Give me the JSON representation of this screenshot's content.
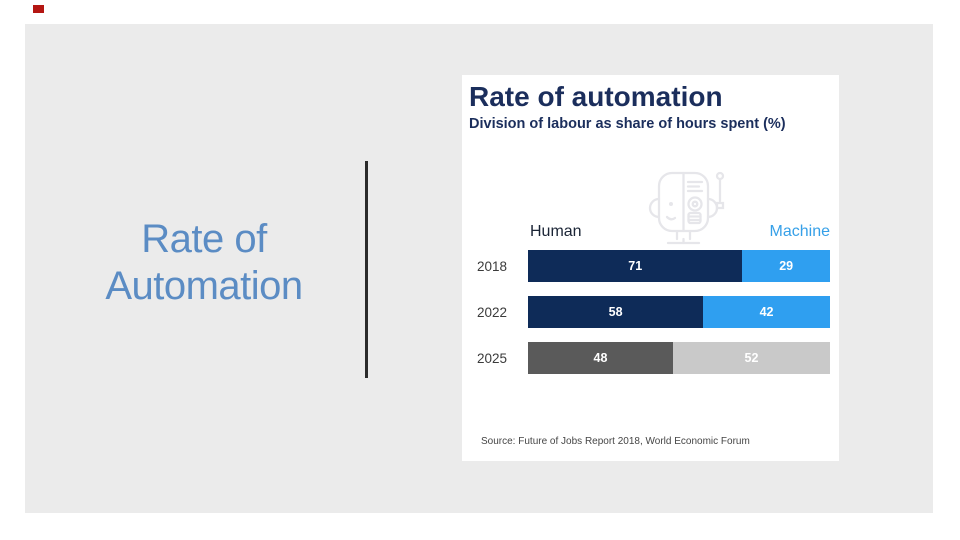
{
  "slide": {
    "accent_color": "#b41612",
    "title_lines": [
      "Rate of",
      "Automation"
    ],
    "title_color": "#5b8cc4"
  },
  "chart": {
    "title": "Rate of automation",
    "subtitle": "Division of labour as share of hours spent (%)",
    "legend": {
      "human": "Human",
      "machine": "Machine"
    },
    "source": "Source: Future of Jobs Report 2018, World Economic Forum",
    "colors": {
      "title_navy": "#1b2e5c",
      "human_bar_navy": "#0e2b58",
      "machine_bar_blue": "#2f9ff0",
      "human_bar_gray_2025": "#5a5a5a",
      "machine_bar_gray_2025": "#c9c9c9",
      "human_label": "#1a2435",
      "machine_label": "#36a0e8",
      "value_label": "#ffffff"
    }
  },
  "chart_data": {
    "type": "bar",
    "orientation": "horizontal",
    "stacked": true,
    "title": "Rate of automation",
    "subtitle": "Division of labour as share of hours spent (%)",
    "categories": [
      "2018",
      "2022",
      "2025"
    ],
    "series": [
      {
        "name": "Human",
        "values": [
          71,
          58,
          48
        ]
      },
      {
        "name": "Machine",
        "values": [
          29,
          42,
          52
        ]
      }
    ],
    "value_unit": "% of hours spent",
    "xlim": [
      0,
      100
    ],
    "legend_position": "top",
    "grid": false,
    "row_colors": [
      [
        "#0e2b58",
        "#2f9ff0"
      ],
      [
        "#0e2b58",
        "#2f9ff0"
      ],
      [
        "#5a5a5a",
        "#c9c9c9"
      ]
    ],
    "source": "Source: Future of Jobs Report 2018, World Economic Forum"
  }
}
